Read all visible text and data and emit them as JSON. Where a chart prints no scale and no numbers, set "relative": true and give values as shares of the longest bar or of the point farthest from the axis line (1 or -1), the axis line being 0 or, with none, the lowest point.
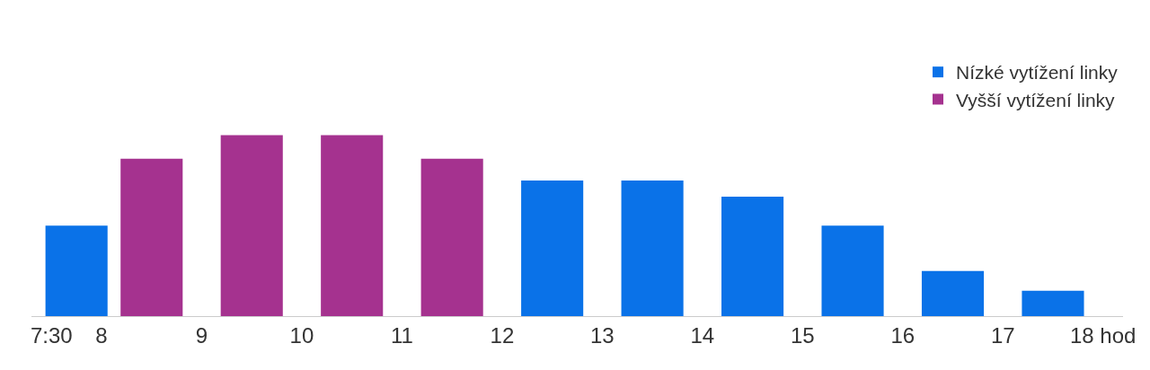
{
  "chart_data": {
    "type": "bar",
    "relative": true,
    "x": [
      7.75,
      8.5,
      9.5,
      10.5,
      11.5,
      12.5,
      13.5,
      14.5,
      15.5,
      16.5,
      17.5
    ],
    "series": [
      {
        "name": "Nízké vytížení linky",
        "color": "#0a72e8",
        "values": [
          0.5,
          null,
          null,
          null,
          null,
          0.75,
          0.75,
          0.66,
          0.5,
          0.25,
          0.14
        ]
      },
      {
        "name": "Vyšší vytížení linky",
        "color": "#a5328f",
        "values": [
          null,
          0.87,
          1,
          1,
          0.87,
          null,
          null,
          null,
          null,
          null,
          null
        ]
      }
    ],
    "xlim": [
      7.3,
      18.2
    ],
    "xticks": [
      {
        "value": 7.5,
        "label": "7:30"
      },
      8,
      9,
      10,
      11,
      12,
      13,
      14,
      15,
      16,
      17,
      {
        "value": 18,
        "label": "18 hod"
      }
    ],
    "legend": "top right"
  }
}
